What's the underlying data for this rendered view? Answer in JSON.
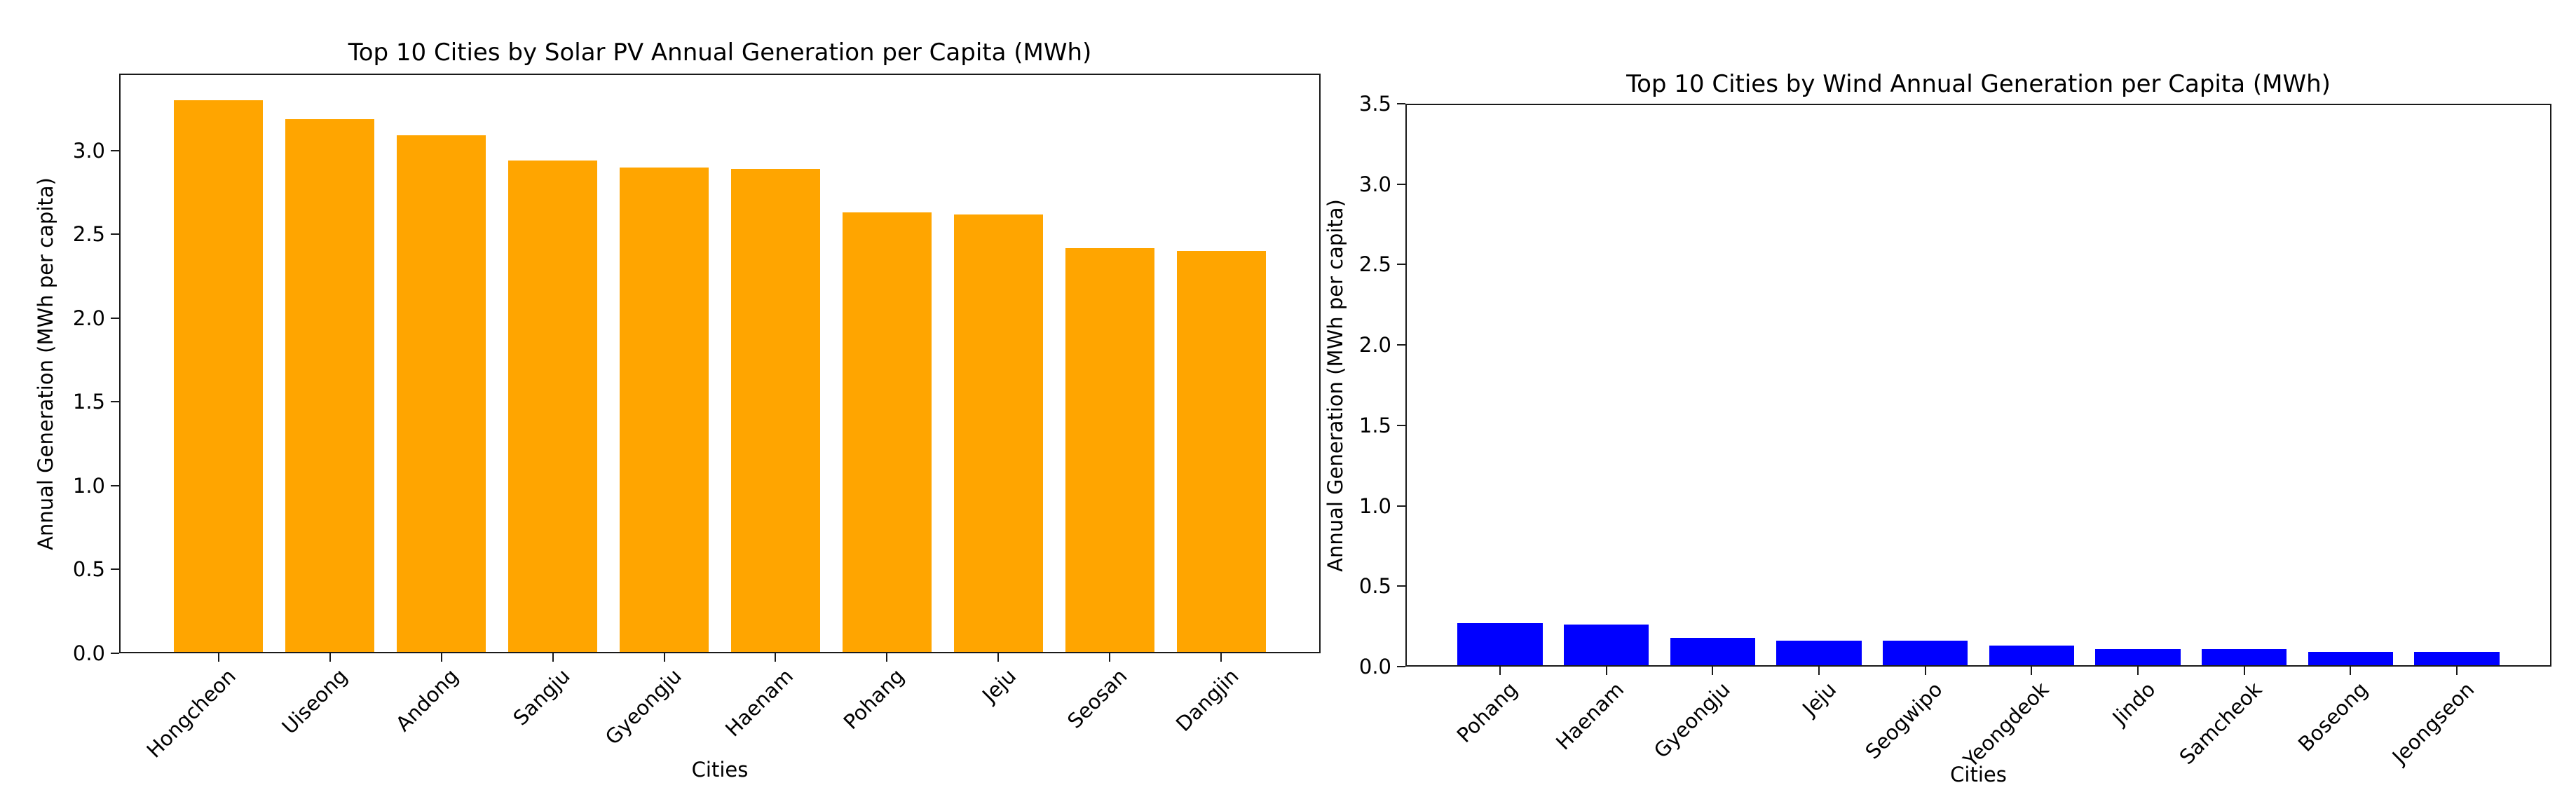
{
  "figure": {
    "background": "#ffffff",
    "text_color": "#000000",
    "spine_color": "#1a1a1a"
  },
  "chart_data": [
    {
      "type": "bar",
      "title": "Top 10 Cities by Solar PV Annual Generation per Capita (MWh)",
      "xlabel": "Cities",
      "ylabel": "Annual Generation (MWh per capita)",
      "categories": [
        "Hongcheon",
        "Uiseong",
        "Andong",
        "Sangju",
        "Gyeongju",
        "Haenam",
        "Pohang",
        "Jeju",
        "Seosan",
        "Dangjin"
      ],
      "values": [
        3.3,
        3.19,
        3.09,
        2.94,
        2.9,
        2.89,
        2.63,
        2.62,
        2.42,
        2.4
      ],
      "bar_color": "#FFA500",
      "ylim": [
        0,
        3.46
      ],
      "yticks": [
        0.0,
        0.5,
        1.0,
        1.5,
        2.0,
        2.5,
        3.0
      ],
      "x_tick_rotation": 45,
      "grid": false,
      "legend": "none"
    },
    {
      "type": "bar",
      "title": "Top 10 Cities by Wind Annual Generation per Capita (MWh)",
      "xlabel": "Cities",
      "ylabel": "Annual Generation (MWh per capita)",
      "categories": [
        "Pohang",
        "Haenam",
        "Gyeongju",
        "Jeju",
        "Seogwipo",
        "Yeongdeok",
        "Jindo",
        "Samcheok",
        "Boseong",
        "Jeongseon"
      ],
      "values": [
        0.27,
        0.26,
        0.18,
        0.16,
        0.16,
        0.13,
        0.11,
        0.11,
        0.09,
        0.09
      ],
      "bar_color": "#0000FF",
      "ylim": [
        0,
        3.5
      ],
      "yticks": [
        0.0,
        0.5,
        1.0,
        1.5,
        2.0,
        2.5,
        3.0,
        3.5
      ],
      "x_tick_rotation": 45,
      "grid": false,
      "legend": "none"
    }
  ]
}
